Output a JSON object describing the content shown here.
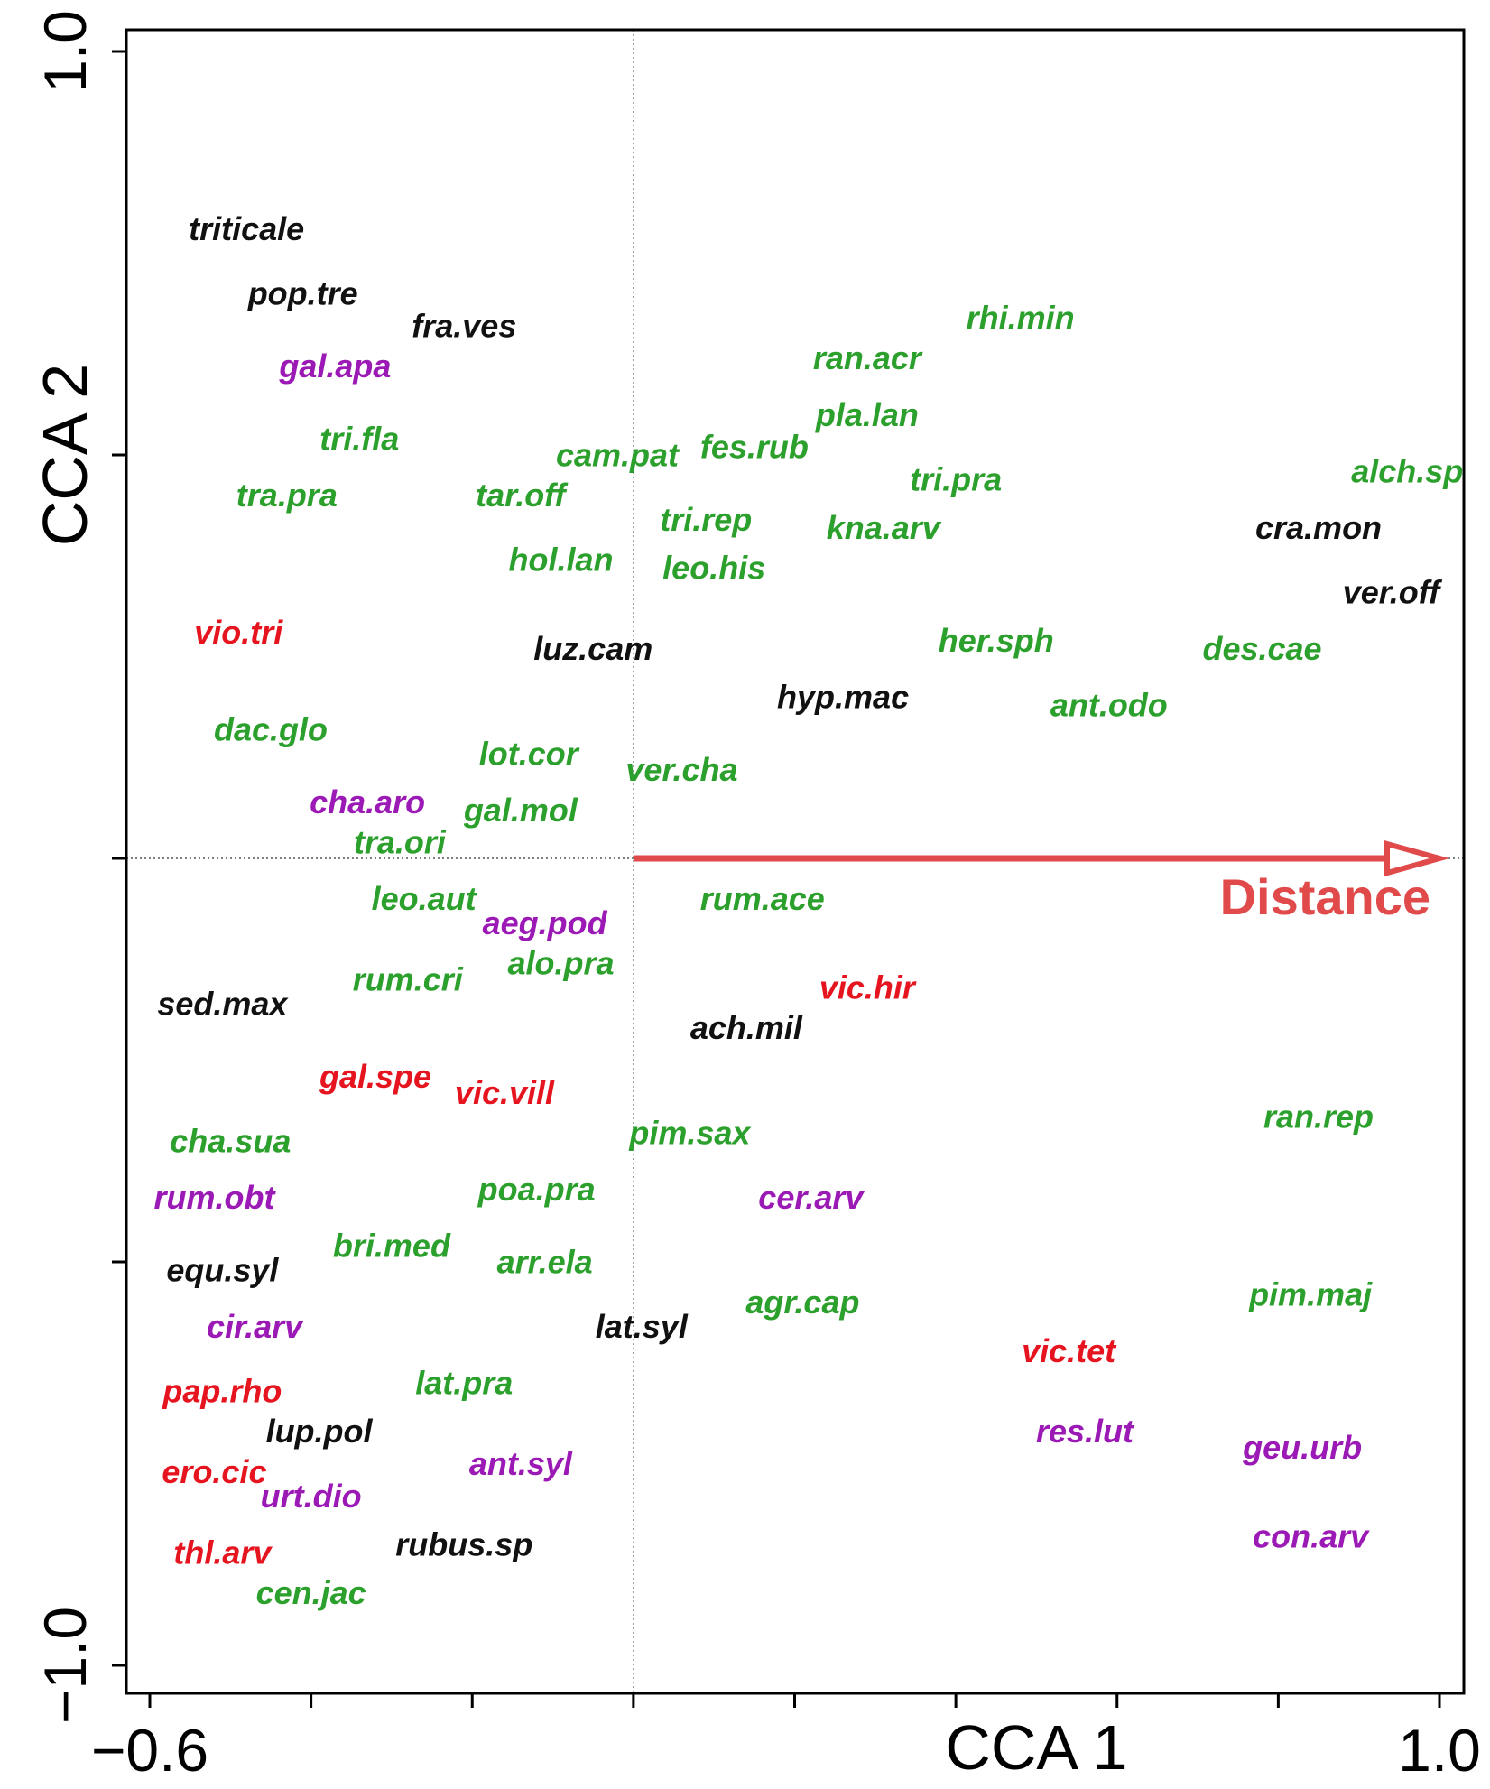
{
  "chart_data": {
    "type": "scatter",
    "title": "",
    "xlabel": "CCA 1",
    "ylabel": "CCA 2",
    "xlim": [
      -0.6,
      1.0
    ],
    "ylim": [
      -1.0,
      1.0
    ],
    "x_tick_values": [
      -0.6,
      -0.4,
      -0.2,
      0.0,
      0.2,
      0.4,
      0.6,
      0.8,
      1.0
    ],
    "y_tick_values": [
      -1.0,
      -0.5,
      0.0,
      0.5,
      1.0
    ],
    "x_tick_labels": [
      {
        "value": -0.6,
        "label": "−0.6"
      },
      {
        "value": 1.0,
        "label": "1.0"
      }
    ],
    "y_tick_labels": [
      {
        "value": -1.0,
        "label": "−1.0"
      },
      {
        "value": 1.0,
        "label": "1.0"
      }
    ],
    "reference_lines": {
      "x": 0.0,
      "y": 0.0,
      "style": "dotted"
    },
    "grid": false,
    "legend": "none",
    "colors": {
      "green": "#2ca02c",
      "black": "#111111",
      "purple": "#9b19b5",
      "red": "#e5141f",
      "vector": "#e04a4a"
    },
    "vector": {
      "label": "Distance",
      "from": [
        0.0,
        0.0
      ],
      "to": [
        1.0,
        0.0
      ],
      "color": "#e04a4a"
    },
    "points": [
      {
        "label": "triticale",
        "x": -0.48,
        "y": 0.78,
        "color": "black"
      },
      {
        "label": "pop.tre",
        "x": -0.41,
        "y": 0.7,
        "color": "black"
      },
      {
        "label": "fra.ves",
        "x": -0.21,
        "y": 0.66,
        "color": "black"
      },
      {
        "label": "gal.apa",
        "x": -0.37,
        "y": 0.61,
        "color": "purple"
      },
      {
        "label": "tri.fla",
        "x": -0.34,
        "y": 0.52,
        "color": "green"
      },
      {
        "label": "tra.pra",
        "x": -0.43,
        "y": 0.45,
        "color": "green"
      },
      {
        "label": "tar.off",
        "x": -0.14,
        "y": 0.45,
        "color": "green"
      },
      {
        "label": "cam.pat",
        "x": -0.02,
        "y": 0.5,
        "color": "green"
      },
      {
        "label": "fes.rub",
        "x": 0.15,
        "y": 0.51,
        "color": "green"
      },
      {
        "label": "ran.acr",
        "x": 0.29,
        "y": 0.62,
        "color": "green"
      },
      {
        "label": "rhi.min",
        "x": 0.48,
        "y": 0.67,
        "color": "green"
      },
      {
        "label": "pla.lan",
        "x": 0.29,
        "y": 0.55,
        "color": "green"
      },
      {
        "label": "tri.pra",
        "x": 0.4,
        "y": 0.47,
        "color": "green"
      },
      {
        "label": "alch.sp",
        "x": 0.96,
        "y": 0.48,
        "color": "green"
      },
      {
        "label": "tri.rep",
        "x": 0.09,
        "y": 0.42,
        "color": "green"
      },
      {
        "label": "kna.arv",
        "x": 0.31,
        "y": 0.41,
        "color": "green"
      },
      {
        "label": "cra.mon",
        "x": 0.85,
        "y": 0.41,
        "color": "black"
      },
      {
        "label": "hol.lan",
        "x": -0.09,
        "y": 0.37,
        "color": "green"
      },
      {
        "label": "leo.his",
        "x": 0.1,
        "y": 0.36,
        "color": "green"
      },
      {
        "label": "ver.off",
        "x": 0.94,
        "y": 0.33,
        "color": "black"
      },
      {
        "label": "vio.tri",
        "x": -0.49,
        "y": 0.28,
        "color": "red"
      },
      {
        "label": "luz.cam",
        "x": -0.05,
        "y": 0.26,
        "color": "black"
      },
      {
        "label": "her.sph",
        "x": 0.45,
        "y": 0.27,
        "color": "green"
      },
      {
        "label": "des.cae",
        "x": 0.78,
        "y": 0.26,
        "color": "green"
      },
      {
        "label": "hyp.mac",
        "x": 0.26,
        "y": 0.2,
        "color": "black"
      },
      {
        "label": "ant.odo",
        "x": 0.59,
        "y": 0.19,
        "color": "green"
      },
      {
        "label": "dac.glo",
        "x": -0.45,
        "y": 0.16,
        "color": "green"
      },
      {
        "label": "lot.cor",
        "x": -0.13,
        "y": 0.13,
        "color": "green"
      },
      {
        "label": "ver.cha",
        "x": 0.06,
        "y": 0.11,
        "color": "green"
      },
      {
        "label": "cha.aro",
        "x": -0.33,
        "y": 0.07,
        "color": "purple"
      },
      {
        "label": "gal.mol",
        "x": -0.14,
        "y": 0.06,
        "color": "green"
      },
      {
        "label": "tra.ori",
        "x": -0.29,
        "y": 0.02,
        "color": "green"
      },
      {
        "label": "leo.aut",
        "x": -0.26,
        "y": -0.05,
        "color": "green"
      },
      {
        "label": "aeg.pod",
        "x": -0.11,
        "y": -0.08,
        "color": "purple"
      },
      {
        "label": "rum.ace",
        "x": 0.16,
        "y": -0.05,
        "color": "green"
      },
      {
        "label": "alo.pra",
        "x": -0.09,
        "y": -0.13,
        "color": "green"
      },
      {
        "label": "rum.cri",
        "x": -0.28,
        "y": -0.15,
        "color": "green"
      },
      {
        "label": "sed.max",
        "x": -0.51,
        "y": -0.18,
        "color": "black"
      },
      {
        "label": "vic.hir",
        "x": 0.29,
        "y": -0.16,
        "color": "red"
      },
      {
        "label": "ach.mil",
        "x": 0.14,
        "y": -0.21,
        "color": "black"
      },
      {
        "label": "gal.spe",
        "x": -0.32,
        "y": -0.27,
        "color": "red"
      },
      {
        "label": "vic.vill",
        "x": -0.16,
        "y": -0.29,
        "color": "red"
      },
      {
        "label": "cha.sua",
        "x": -0.5,
        "y": -0.35,
        "color": "green"
      },
      {
        "label": "pim.sax",
        "x": 0.07,
        "y": -0.34,
        "color": "green"
      },
      {
        "label": "ran.rep",
        "x": 0.85,
        "y": -0.32,
        "color": "green"
      },
      {
        "label": "rum.obt",
        "x": -0.52,
        "y": -0.42,
        "color": "purple"
      },
      {
        "label": "poa.pra",
        "x": -0.12,
        "y": -0.41,
        "color": "green"
      },
      {
        "label": "cer.arv",
        "x": 0.22,
        "y": -0.42,
        "color": "purple"
      },
      {
        "label": "bri.med",
        "x": -0.3,
        "y": -0.48,
        "color": "green"
      },
      {
        "label": "equ.syl",
        "x": -0.51,
        "y": -0.51,
        "color": "black"
      },
      {
        "label": "arr.ela",
        "x": -0.11,
        "y": -0.5,
        "color": "green"
      },
      {
        "label": "agr.cap",
        "x": 0.21,
        "y": -0.55,
        "color": "green"
      },
      {
        "label": "pim.maj",
        "x": 0.84,
        "y": -0.54,
        "color": "green"
      },
      {
        "label": "cir.arv",
        "x": -0.47,
        "y": -0.58,
        "color": "purple"
      },
      {
        "label": "lat.syl",
        "x": 0.01,
        "y": -0.58,
        "color": "black"
      },
      {
        "label": "vic.tet",
        "x": 0.54,
        "y": -0.61,
        "color": "red"
      },
      {
        "label": "pap.rho",
        "x": -0.51,
        "y": -0.66,
        "color": "red"
      },
      {
        "label": "lat.pra",
        "x": -0.21,
        "y": -0.65,
        "color": "green"
      },
      {
        "label": "lup.pol",
        "x": -0.39,
        "y": -0.71,
        "color": "black"
      },
      {
        "label": "res.lut",
        "x": 0.56,
        "y": -0.71,
        "color": "purple"
      },
      {
        "label": "geu.urb",
        "x": 0.83,
        "y": -0.73,
        "color": "purple"
      },
      {
        "label": "ero.cic",
        "x": -0.52,
        "y": -0.76,
        "color": "red"
      },
      {
        "label": "ant.syl",
        "x": -0.14,
        "y": -0.75,
        "color": "purple"
      },
      {
        "label": "urt.dio",
        "x": -0.4,
        "y": -0.79,
        "color": "purple"
      },
      {
        "label": "rubus.sp",
        "x": -0.21,
        "y": -0.85,
        "color": "black"
      },
      {
        "label": "con.arv",
        "x": 0.84,
        "y": -0.84,
        "color": "purple"
      },
      {
        "label": "thl.arv",
        "x": -0.51,
        "y": -0.86,
        "color": "red"
      },
      {
        "label": "cen.jac",
        "x": -0.4,
        "y": -0.91,
        "color": "green"
      }
    ]
  }
}
